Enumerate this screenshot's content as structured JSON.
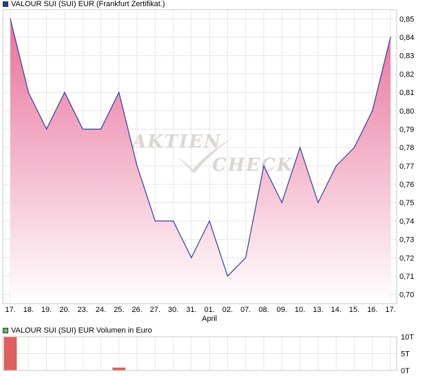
{
  "price_legend": {
    "label": "VALOUR SUI (SUI) EUR (Frankfurt Zertifikat.)",
    "color": "#1f3f99"
  },
  "volume_legend": {
    "label": "VALOUR SUI (SUI) EUR Volumen in Euro",
    "color": "#5fbf5f"
  },
  "watermark": {
    "word1": "AKTIEN",
    "word2": "CHECK"
  },
  "chart_data": [
    {
      "type": "area",
      "categories": [
        "17.",
        "18.",
        "19.",
        "20.",
        "23.",
        "24.",
        "25.",
        "26.",
        "27.",
        "30.",
        "31.",
        "01.",
        "02.",
        "07.",
        "08.",
        "09.",
        "10.",
        "13.",
        "14.",
        "15.",
        "16.",
        "17."
      ],
      "month_marker": {
        "at": "01.",
        "label": "April"
      },
      "series": [
        {
          "values": [
            0.85,
            0.81,
            0.79,
            0.81,
            0.79,
            0.79,
            0.81,
            0.77,
            0.74,
            0.74,
            0.72,
            0.74,
            0.71,
            0.72,
            0.77,
            0.75,
            0.78,
            0.75,
            0.77,
            0.78,
            0.8,
            0.84
          ]
        }
      ],
      "ylim": [
        0.695,
        0.855
      ],
      "yticks": [
        "0,85",
        "0,84",
        "0,83",
        "0,82",
        "0,81",
        "0,80",
        "0,79",
        "0,78",
        "0,77",
        "0,76",
        "0,75",
        "0,74",
        "0,73",
        "0,72",
        "0,71",
        "0,70"
      ],
      "y_axis_side": "right",
      "grid": true,
      "colors": {
        "line": "#2b3d9f",
        "fill_top": "#e8709a",
        "fill_bottom": "#ffffff"
      }
    },
    {
      "type": "bar",
      "categories": [
        "17.",
        "18.",
        "19.",
        "20.",
        "23.",
        "24.",
        "25.",
        "26.",
        "27.",
        "30.",
        "31.",
        "01.",
        "02.",
        "07.",
        "08.",
        "09.",
        "10.",
        "13.",
        "14.",
        "15.",
        "16.",
        "17."
      ],
      "values": [
        10,
        0,
        0,
        0,
        0,
        0,
        0.8,
        0,
        0,
        0,
        0,
        0,
        0,
        0,
        0,
        0,
        0,
        0,
        0,
        0,
        0,
        0
      ],
      "ylim": [
        0,
        10
      ],
      "yticks": [
        "10T",
        "5T",
        "0T"
      ],
      "y_axis_side": "right",
      "grid": true,
      "colors": {
        "bar": "#e06060"
      }
    }
  ]
}
